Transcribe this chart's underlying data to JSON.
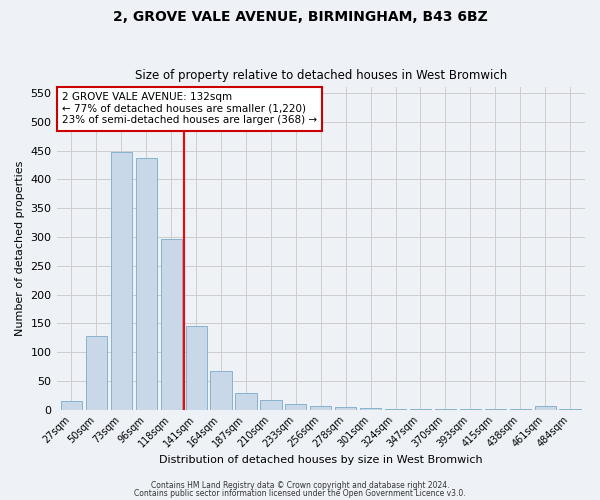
{
  "title_line1": "2, GROVE VALE AVENUE, BIRMINGHAM, B43 6BZ",
  "title_line2": "Size of property relative to detached houses in West Bromwich",
  "xlabel": "Distribution of detached houses by size in West Bromwich",
  "ylabel": "Number of detached properties",
  "categories": [
    "27sqm",
    "50sqm",
    "73sqm",
    "96sqm",
    "118sqm",
    "141sqm",
    "164sqm",
    "187sqm",
    "210sqm",
    "233sqm",
    "256sqm",
    "278sqm",
    "301sqm",
    "324sqm",
    "347sqm",
    "370sqm",
    "393sqm",
    "415sqm",
    "438sqm",
    "461sqm",
    "484sqm"
  ],
  "values": [
    15,
    128,
    448,
    437,
    297,
    145,
    68,
    29,
    16,
    9,
    6,
    5,
    3,
    2,
    2,
    2,
    2,
    2,
    1,
    6,
    1
  ],
  "bar_color": "#c8d8e8",
  "bar_edge_color": "#7aaac8",
  "vline_x": 4.5,
  "annotation_text": "2 GROVE VALE AVENUE: 132sqm\n← 77% of detached houses are smaller (1,220)\n23% of semi-detached houses are larger (368) →",
  "annotation_box_color": "#ffffff",
  "annotation_box_edge": "#cc0000",
  "grid_color": "#cccccc",
  "background_color": "#eef2f7",
  "ylim": [
    0,
    560
  ],
  "yticks": [
    0,
    50,
    100,
    150,
    200,
    250,
    300,
    350,
    400,
    450,
    500,
    550
  ],
  "footer_line1": "Contains HM Land Registry data © Crown copyright and database right 2024.",
  "footer_line2": "Contains public sector information licensed under the Open Government Licence v3.0."
}
